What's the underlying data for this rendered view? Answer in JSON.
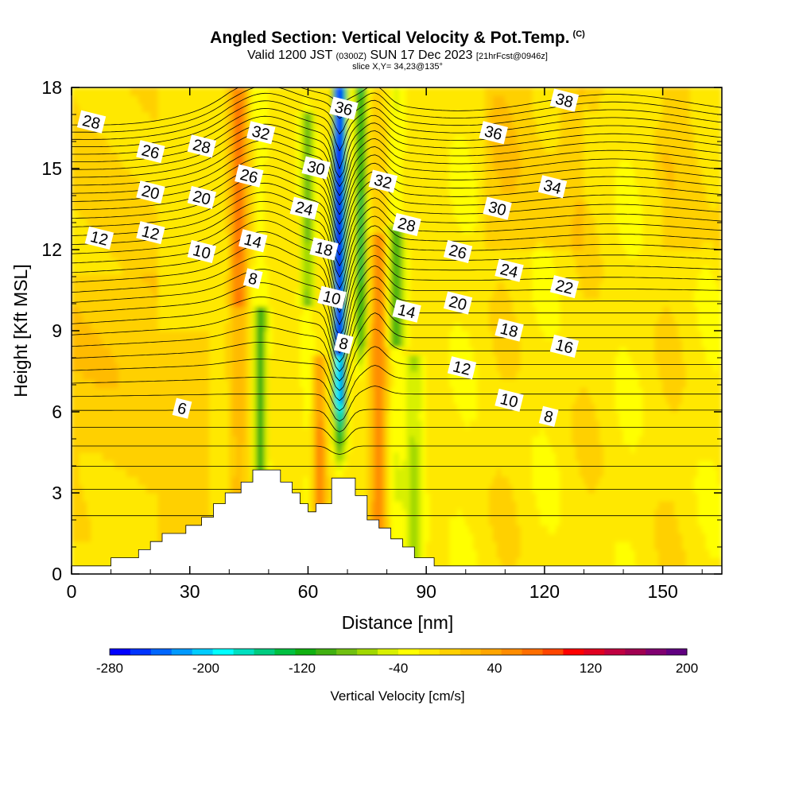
{
  "title": "Angled Section: Vertical Velocity & Pot.Temp.",
  "title_mark": "(C)",
  "valid_prefix": "Valid 1200 JST",
  "valid_utc": "(0300Z)",
  "valid_date": "SUN 17 Dec 2023",
  "forecast_info": "[21hrFcst@0946z]",
  "slice_info": "slice X,Y= 34,23@135°",
  "chart_data": {
    "type": "heatmap",
    "xlabel": "Distance [nm]",
    "ylabel": "Height [Kft MSL]",
    "xlim": [
      0,
      165
    ],
    "ylim": [
      0,
      18
    ],
    "x_ticks": [
      "0",
      "30",
      "60",
      "90",
      "120",
      "150"
    ],
    "y_ticks": [
      "0",
      "3",
      "6",
      "9",
      "12",
      "15",
      "18"
    ],
    "colorbar": {
      "label": "Vertical Velocity [cm/s]",
      "range": [
        -280,
        200
      ],
      "step": 20,
      "tick_labels": [
        "-280",
        "-200",
        "-120",
        "-40",
        "40",
        "120",
        "200"
      ],
      "tick_values": [
        -280,
        -200,
        -120,
        -40,
        40,
        120,
        200
      ],
      "colors": [
        "#0000ff",
        "#0033ff",
        "#0066ff",
        "#0099ff",
        "#00ccff",
        "#00ffff",
        "#00e0c0",
        "#00cc80",
        "#00c040",
        "#10b010",
        "#40b010",
        "#70c010",
        "#a0d800",
        "#d8f000",
        "#ffff00",
        "#ffe800",
        "#ffd000",
        "#ffbb00",
        "#ffa500",
        "#ff8c00",
        "#ff6e00",
        "#ff4500",
        "#ff0000",
        "#e00020",
        "#c00040",
        "#a00050",
        "#800070",
        "#600080"
      ]
    },
    "contour_labels": [
      {
        "text": "28",
        "x": 5,
        "y": 16.7
      },
      {
        "text": "26",
        "x": 20,
        "y": 15.6
      },
      {
        "text": "28",
        "x": 33,
        "y": 15.8
      },
      {
        "text": "32",
        "x": 48,
        "y": 16.3
      },
      {
        "text": "36",
        "x": 69,
        "y": 17.2
      },
      {
        "text": "38",
        "x": 125,
        "y": 17.5
      },
      {
        "text": "36",
        "x": 107,
        "y": 16.3
      },
      {
        "text": "30",
        "x": 62,
        "y": 15.0
      },
      {
        "text": "26",
        "x": 45,
        "y": 14.7
      },
      {
        "text": "20",
        "x": 20,
        "y": 14.1
      },
      {
        "text": "20",
        "x": 33,
        "y": 13.9
      },
      {
        "text": "32",
        "x": 79,
        "y": 14.5
      },
      {
        "text": "34",
        "x": 122,
        "y": 14.3
      },
      {
        "text": "24",
        "x": 59,
        "y": 13.5
      },
      {
        "text": "30",
        "x": 108,
        "y": 13.5
      },
      {
        "text": "28",
        "x": 85,
        "y": 12.9
      },
      {
        "text": "12",
        "x": 7,
        "y": 12.4
      },
      {
        "text": "12",
        "x": 20,
        "y": 12.6
      },
      {
        "text": "14",
        "x": 46,
        "y": 12.3
      },
      {
        "text": "10",
        "x": 33,
        "y": 11.9
      },
      {
        "text": "18",
        "x": 64,
        "y": 12.0
      },
      {
        "text": "26",
        "x": 98,
        "y": 11.9
      },
      {
        "text": "24",
        "x": 111,
        "y": 11.2
      },
      {
        "text": "8",
        "x": 46,
        "y": 10.9
      },
      {
        "text": "22",
        "x": 125,
        "y": 10.6
      },
      {
        "text": "10",
        "x": 66,
        "y": 10.2
      },
      {
        "text": "20",
        "x": 98,
        "y": 10.0
      },
      {
        "text": "14",
        "x": 85,
        "y": 9.7
      },
      {
        "text": "18",
        "x": 111,
        "y": 9.0
      },
      {
        "text": "16",
        "x": 125,
        "y": 8.4
      },
      {
        "text": "8",
        "x": 69,
        "y": 8.5
      },
      {
        "text": "12",
        "x": 99,
        "y": 7.6
      },
      {
        "text": "6",
        "x": 28,
        "y": 6.1
      },
      {
        "text": "10",
        "x": 111,
        "y": 6.4
      },
      {
        "text": "8",
        "x": 121,
        "y": 5.8
      }
    ],
    "terrain": [
      [
        0,
        0.3
      ],
      [
        10,
        0.3
      ],
      [
        10,
        0.6
      ],
      [
        17,
        0.6
      ],
      [
        17,
        0.9
      ],
      [
        20,
        0.9
      ],
      [
        20,
        1.2
      ],
      [
        23,
        1.2
      ],
      [
        23,
        1.5
      ],
      [
        29,
        1.5
      ],
      [
        29,
        1.8
      ],
      [
        33,
        1.8
      ],
      [
        33,
        2.1
      ],
      [
        36,
        2.1
      ],
      [
        36,
        2.6
      ],
      [
        39,
        2.6
      ],
      [
        39,
        3.0
      ],
      [
        43,
        3.0
      ],
      [
        43,
        3.4
      ],
      [
        46,
        3.4
      ],
      [
        46,
        3.85
      ],
      [
        53,
        3.85
      ],
      [
        53,
        3.4
      ],
      [
        56,
        3.4
      ],
      [
        56,
        3.0
      ],
      [
        58,
        3.0
      ],
      [
        58,
        2.6
      ],
      [
        60,
        2.6
      ],
      [
        60,
        2.3
      ],
      [
        62,
        2.3
      ],
      [
        62,
        2.6
      ],
      [
        66,
        2.6
      ],
      [
        66,
        3.55
      ],
      [
        72,
        3.55
      ],
      [
        72,
        2.9
      ],
      [
        75,
        2.9
      ],
      [
        75,
        2.0
      ],
      [
        78,
        2.0
      ],
      [
        78,
        1.7
      ],
      [
        81,
        1.7
      ],
      [
        81,
        1.3
      ],
      [
        84,
        1.3
      ],
      [
        84,
        1.0
      ],
      [
        87,
        1.0
      ],
      [
        87,
        0.6
      ],
      [
        92,
        0.6
      ],
      [
        92,
        0.3
      ],
      [
        165,
        0.3
      ]
    ]
  }
}
